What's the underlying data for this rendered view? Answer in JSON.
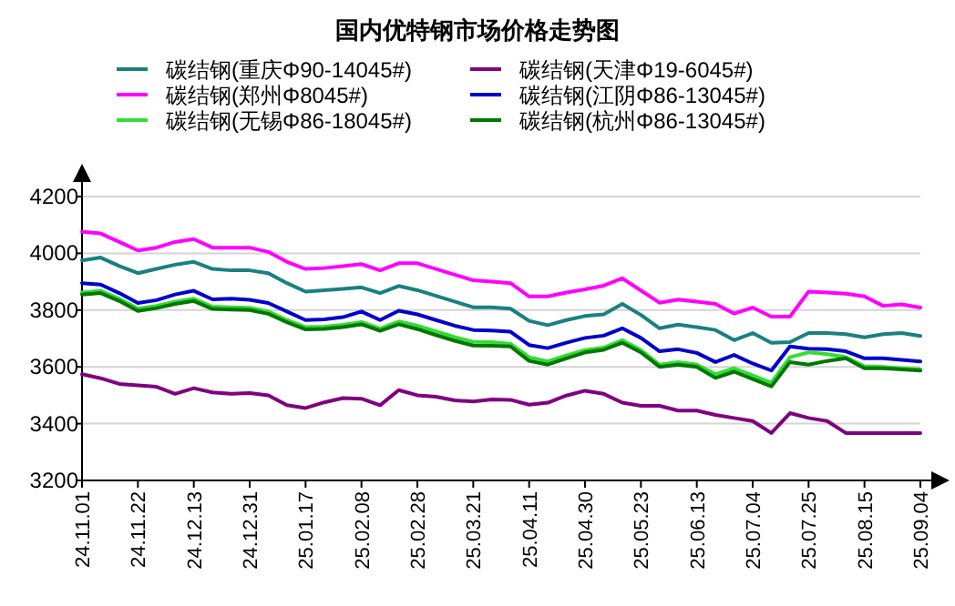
{
  "chart_data": {
    "type": "line",
    "title": "国内优特钢市场价格走势图",
    "categories": [
      "24.11.01",
      null,
      null,
      "24.11.22",
      null,
      null,
      "24.12.13",
      null,
      null,
      "24.12.31",
      null,
      null,
      "25.01.17",
      null,
      null,
      "25.02.08",
      null,
      null,
      "25.02.28",
      null,
      null,
      "25.03.21",
      null,
      null,
      "25.04.11",
      null,
      null,
      "25.04.30",
      null,
      null,
      "25.05.23",
      null,
      null,
      "25.06.13",
      null,
      null,
      "25.07.04",
      null,
      null,
      "25.07.25",
      null,
      null,
      "25.08.15",
      null,
      null,
      "25.09.04"
    ],
    "series": [
      {
        "name": "碳结钢(重庆Φ90-14045#)",
        "color": "#1a8080",
        "values": [
          3975,
          3985,
          3955,
          3930,
          3945,
          3960,
          3970,
          3945,
          3940,
          3940,
          3930,
          3895,
          3865,
          3870,
          3875,
          3880,
          3860,
          3885,
          3870,
          3850,
          3830,
          3810,
          3810,
          3805,
          3762,
          3747,
          3765,
          3779,
          3785,
          3822,
          3783,
          3736,
          3749,
          3740,
          3730,
          3694,
          3719,
          3685,
          3687,
          3719,
          3719,
          3715,
          3704,
          3715,
          3719,
          3709
        ]
      },
      {
        "name": "碳结钢(天津Φ19-6045#)",
        "color": "#800080",
        "values": [
          3574,
          3560,
          3540,
          3535,
          3530,
          3505,
          3525,
          3510,
          3505,
          3508,
          3500,
          3465,
          3455,
          3475,
          3490,
          3488,
          3465,
          3518,
          3500,
          3495,
          3482,
          3478,
          3485,
          3484,
          3467,
          3474,
          3499,
          3516,
          3505,
          3474,
          3463,
          3463,
          3446,
          3446,
          3431,
          3420,
          3409,
          3367,
          3437,
          3420,
          3409,
          3367,
          3367,
          3367,
          3367,
          3367
        ]
      },
      {
        "name": "碳结钢(郑州Φ8045#)",
        "color": "#ff00ff",
        "values": [
          4076,
          4070,
          4040,
          4010,
          4020,
          4040,
          4050,
          4020,
          4020,
          4020,
          4005,
          3970,
          3945,
          3948,
          3955,
          3962,
          3940,
          3965,
          3965,
          3945,
          3925,
          3905,
          3900,
          3895,
          3848,
          3848,
          3862,
          3873,
          3886,
          3912,
          3869,
          3826,
          3837,
          3830,
          3822,
          3788,
          3809,
          3777,
          3777,
          3865,
          3862,
          3858,
          3848,
          3815,
          3820,
          3809
        ]
      },
      {
        "name": "碳结钢(江阴Φ86-13045#)",
        "color": "#0000cc",
        "values": [
          3895,
          3890,
          3860,
          3825,
          3835,
          3855,
          3868,
          3838,
          3840,
          3836,
          3825,
          3795,
          3765,
          3767,
          3775,
          3795,
          3765,
          3798,
          3785,
          3765,
          3745,
          3730,
          3728,
          3724,
          3677,
          3666,
          3685,
          3702,
          3710,
          3736,
          3702,
          3655,
          3662,
          3649,
          3617,
          3642,
          3612,
          3587,
          3672,
          3664,
          3662,
          3655,
          3630,
          3630,
          3625,
          3619
        ]
      },
      {
        "name": "碳结钢(无锡Φ86-18045#)",
        "color": "#33dd33",
        "values": [
          3862,
          3868,
          3840,
          3805,
          3815,
          3830,
          3840,
          3812,
          3810,
          3808,
          3795,
          3765,
          3740,
          3742,
          3748,
          3758,
          3735,
          3760,
          3745,
          3725,
          3705,
          3688,
          3687,
          3681,
          3634,
          3619,
          3640,
          3659,
          3668,
          3694,
          3659,
          3608,
          3617,
          3608,
          3574,
          3595,
          3570,
          3544,
          3634,
          3651,
          3645,
          3634,
          3602,
          3600,
          3595,
          3591
        ]
      },
      {
        "name": "碳结钢(杭州Φ86-13045#)",
        "color": "#007700",
        "values": [
          3855,
          3860,
          3832,
          3797,
          3807,
          3822,
          3832,
          3804,
          3802,
          3800,
          3787,
          3757,
          3732,
          3734,
          3740,
          3750,
          3727,
          3750,
          3733,
          3712,
          3692,
          3675,
          3674,
          3672,
          3621,
          3608,
          3630,
          3651,
          3660,
          3685,
          3651,
          3600,
          3608,
          3600,
          3561,
          3583,
          3557,
          3531,
          3617,
          3608,
          3621,
          3630,
          3595,
          3595,
          3591,
          3587
        ]
      }
    ],
    "ylim": [
      3200,
      4200
    ],
    "yticks": [
      3200,
      3400,
      3600,
      3800,
      4000,
      4200
    ],
    "grid": "y",
    "legend": "top",
    "marker": "none",
    "line_style": "solid"
  }
}
